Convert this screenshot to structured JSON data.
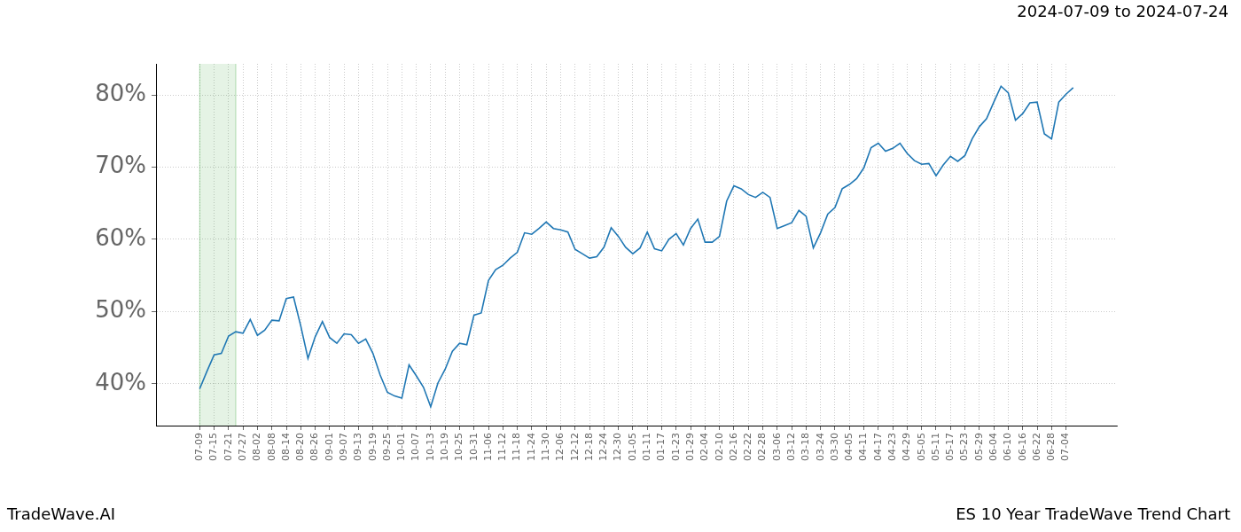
{
  "chart_data": {
    "type": "line",
    "title": "2024-07-09 to 2024-07-24",
    "footer_left": "TradeWave.AI",
    "footer_right": "ES 10 Year TradeWave Trend Chart",
    "categories": [
      "07-09",
      null,
      "07-15",
      null,
      "07-21",
      null,
      "07-27",
      null,
      "08-02",
      null,
      "08-08",
      null,
      "08-14",
      null,
      "08-20",
      null,
      "08-26",
      null,
      "09-01",
      null,
      "09-07",
      null,
      "09-13",
      null,
      "09-19",
      null,
      "09-25",
      null,
      "10-01",
      null,
      "10-07",
      null,
      "10-13",
      null,
      "10-19",
      null,
      "10-25",
      null,
      "10-31",
      null,
      "11-06",
      null,
      "11-12",
      null,
      "11-18",
      null,
      "11-24",
      null,
      "11-30",
      null,
      "12-06",
      null,
      "12-12",
      null,
      "12-18",
      null,
      "12-24",
      null,
      "12-30",
      null,
      "01-05",
      null,
      "01-11",
      null,
      "01-17",
      null,
      "01-23",
      null,
      "01-29",
      null,
      "02-04",
      null,
      "02-10",
      null,
      "02-16",
      null,
      "02-22",
      null,
      "02-28",
      null,
      "03-06",
      null,
      "03-12",
      null,
      "03-18",
      null,
      "03-24",
      null,
      "03-30",
      null,
      "04-05",
      null,
      "04-11",
      null,
      "04-17",
      null,
      "04-23",
      null,
      "04-29",
      null,
      "05-05",
      null,
      "05-11",
      null,
      "05-17",
      null,
      "05-23",
      null,
      "05-29",
      null,
      "06-04",
      null,
      "06-10",
      null,
      "06-16",
      null,
      "06-22",
      null,
      "06-28",
      null,
      "07-04",
      null
    ],
    "values": [
      39.3,
      41.7,
      44.0,
      44.2,
      46.6,
      47.2,
      47.0,
      48.9,
      46.7,
      47.4,
      48.8,
      48.7,
      51.8,
      52.0,
      48.0,
      43.5,
      46.5,
      48.6,
      46.4,
      45.6,
      46.9,
      46.8,
      45.6,
      46.2,
      44.2,
      41.2,
      38.8,
      38.3,
      38.0,
      42.6,
      41.1,
      39.5,
      36.8,
      40.1,
      42.0,
      44.5,
      45.6,
      45.4,
      49.5,
      49.8,
      54.3,
      55.8,
      56.4,
      57.4,
      58.2,
      60.9,
      60.7,
      61.5,
      62.4,
      61.5,
      61.3,
      61.0,
      58.6,
      58.0,
      57.4,
      57.6,
      58.9,
      61.6,
      60.4,
      58.9,
      58.0,
      58.8,
      61.0,
      58.7,
      58.4,
      60.0,
      60.8,
      59.2,
      61.5,
      62.8,
      59.6,
      59.6,
      60.4,
      65.3,
      67.4,
      67.0,
      66.2,
      65.8,
      66.5,
      65.8,
      61.5,
      61.9,
      62.3,
      64.0,
      63.2,
      58.8,
      60.9,
      63.5,
      64.4,
      67.0,
      67.6,
      68.4,
      69.9,
      72.7,
      73.3,
      72.2,
      72.6,
      73.3,
      71.9,
      70.9,
      70.4,
      70.5,
      68.8,
      70.3,
      71.5,
      70.8,
      71.6,
      73.9,
      75.6,
      76.7,
      79.0,
      81.2,
      80.3,
      76.5,
      77.4,
      78.9,
      79.0,
      74.6,
      73.9,
      79.0,
      80.1,
      81.0
    ],
    "color": "#1f77b4",
    "highlight_span": [
      0,
      5
    ],
    "highlight_color": "#2ca02c",
    "ylim": [
      34.2,
      84.3
    ],
    "yticks": [
      {
        "value": 40,
        "label": "40%"
      },
      {
        "value": 50,
        "label": "50%"
      },
      {
        "value": 60,
        "label": "60%"
      },
      {
        "value": 70,
        "label": "70%"
      },
      {
        "value": 80,
        "label": "80%"
      }
    ],
    "grid": true
  }
}
